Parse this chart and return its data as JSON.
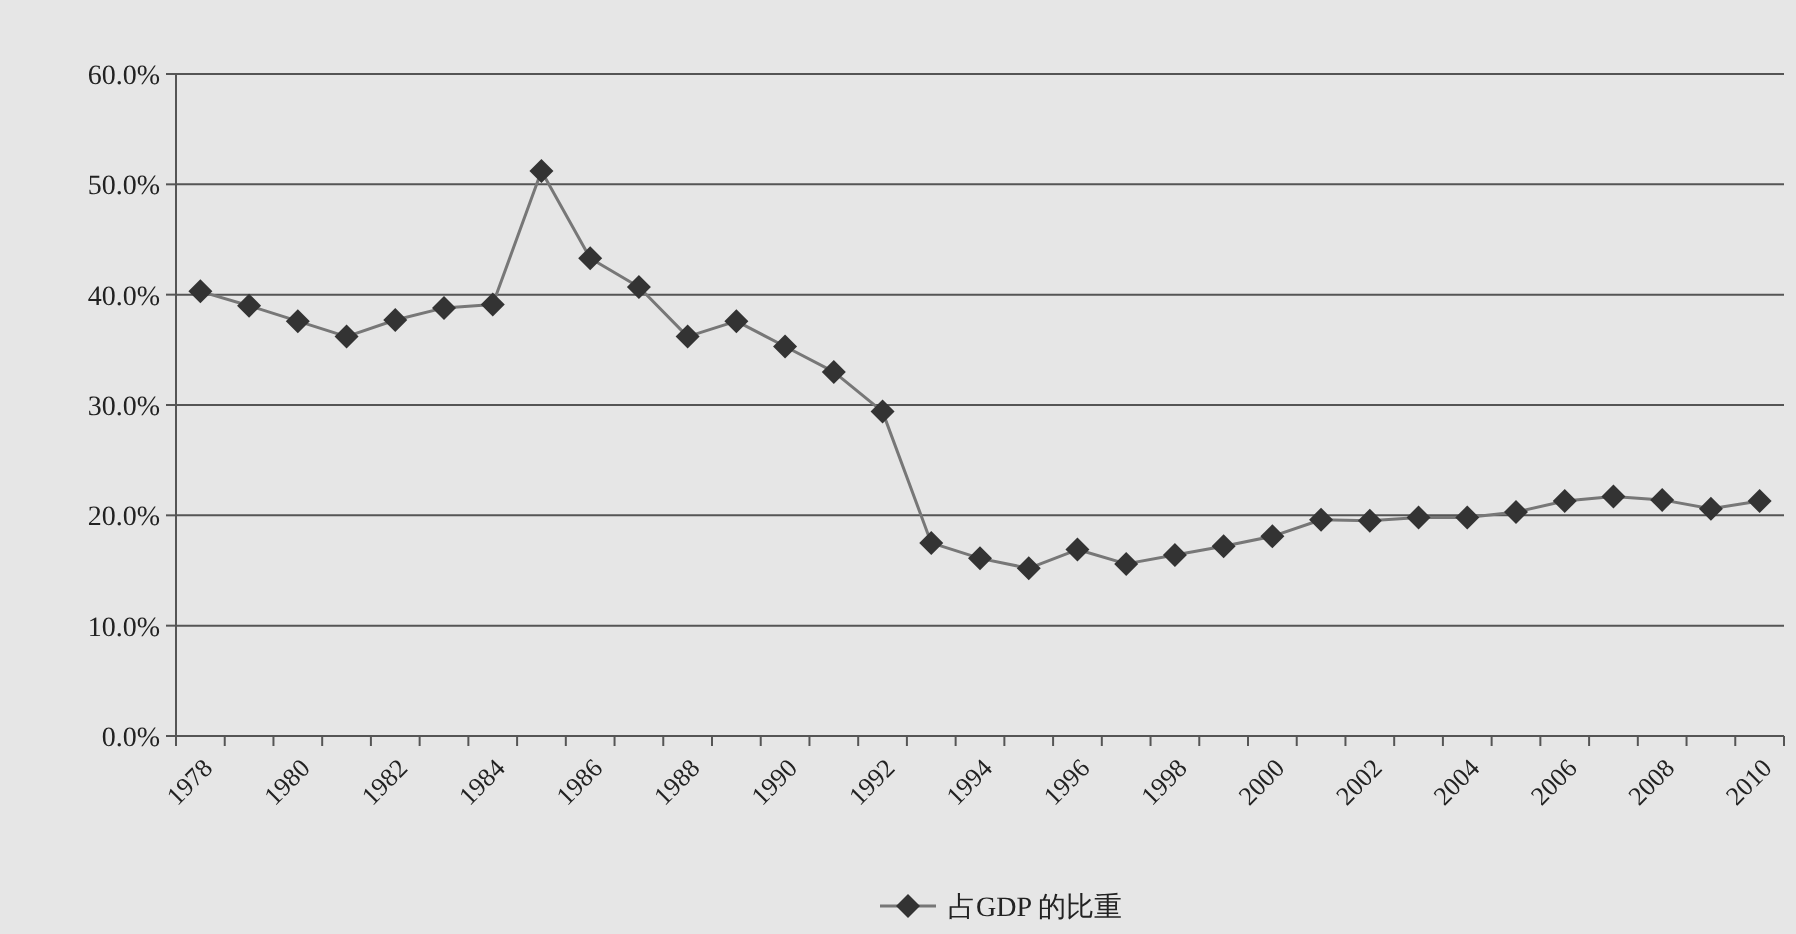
{
  "chart_data": {
    "type": "line",
    "categories": [
      "1978",
      null,
      "1980",
      null,
      "1982",
      null,
      "1984",
      null,
      "1986",
      null,
      "1988",
      null,
      "1990",
      null,
      "1992",
      null,
      "1994",
      null,
      "1996",
      null,
      "1998",
      null,
      "2000",
      null,
      "2002",
      null,
      "2004",
      null,
      "2006",
      null,
      "2008",
      null,
      "2010"
    ],
    "series": [
      {
        "name": "占GDP 的比重",
        "color": "#333333",
        "values": [
          40.3,
          39.0,
          37.6,
          36.2,
          37.7,
          38.8,
          39.1,
          51.2,
          43.3,
          40.7,
          36.2,
          37.6,
          35.3,
          33.0,
          29.4,
          17.5,
          16.1,
          15.2,
          16.9,
          15.6,
          16.4,
          17.2,
          18.1,
          19.6,
          19.5,
          19.8,
          19.8,
          20.3,
          21.3,
          21.7,
          21.4,
          20.6,
          21.3
        ]
      }
    ],
    "ylim": [
      0,
      60
    ],
    "yticks": [
      {
        "value": 0,
        "label": "0.0%"
      },
      {
        "value": 10,
        "label": "10.0%"
      },
      {
        "value": 20,
        "label": "20.0%"
      },
      {
        "value": 30,
        "label": "30.0%"
      },
      {
        "value": 40,
        "label": "40.0%"
      },
      {
        "value": 50,
        "label": "50.0%"
      },
      {
        "value": 60,
        "label": "60.0%"
      }
    ],
    "grid": "y",
    "legend": "bottom",
    "marker": "diamond",
    "line_style": "solid"
  }
}
